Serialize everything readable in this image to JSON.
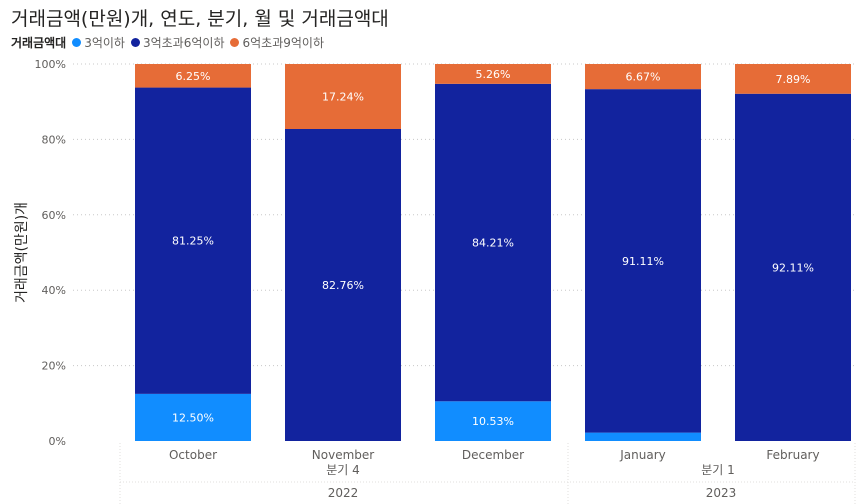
{
  "title": "거래금액(만원)개, 연도, 분기, 월 및 거래금액대",
  "legend": {
    "title": "거래금액대",
    "items": [
      {
        "label": "3억이하",
        "color": "#118DFF"
      },
      {
        "label": "3억초과6억이하",
        "color": "#12239E"
      },
      {
        "label": "6억초과9억이하",
        "color": "#E66C37"
      }
    ]
  },
  "chart_data": {
    "type": "bar",
    "stacked": "percent",
    "ylabel": "거래금액(만원)개",
    "ylim": [
      0,
      100
    ],
    "y_ticks": [
      "0%",
      "20%",
      "40%",
      "60%",
      "80%",
      "100%"
    ],
    "categories": [
      "October",
      "November",
      "December",
      "January",
      "February"
    ],
    "quarters": [
      {
        "label": "분기 4",
        "months": [
          "October",
          "November",
          "December"
        ]
      },
      {
        "label": "분기 1",
        "months": [
          "January",
          "February"
        ]
      }
    ],
    "years": [
      {
        "label": "2022",
        "months": [
          "October",
          "November",
          "December"
        ]
      },
      {
        "label": "2023",
        "months": [
          "January",
          "February"
        ]
      }
    ],
    "series": [
      {
        "name": "3억이하",
        "color": "#118DFF",
        "values": [
          12.5,
          0,
          10.53,
          2.22,
          0
        ],
        "labels": [
          "12.50%",
          "",
          "10.53%",
          "",
          ""
        ]
      },
      {
        "name": "3억초과6억이하",
        "color": "#12239E",
        "values": [
          81.25,
          82.76,
          84.21,
          91.11,
          92.11
        ],
        "labels": [
          "81.25%",
          "82.76%",
          "84.21%",
          "91.11%",
          "92.11%"
        ]
      },
      {
        "name": "6억초과9억이하",
        "color": "#E66C37",
        "values": [
          6.25,
          17.24,
          5.26,
          6.67,
          7.89
        ],
        "labels": [
          "6.25%",
          "17.24%",
          "5.26%",
          "6.67%",
          "7.89%"
        ]
      }
    ],
    "grid": true,
    "legend_position": "top-left"
  }
}
